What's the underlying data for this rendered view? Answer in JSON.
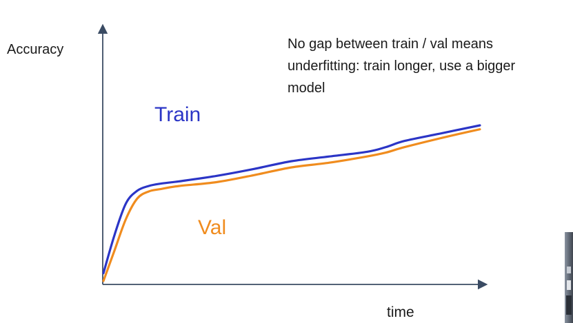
{
  "chart_data": {
    "type": "line",
    "ylabel": "Accuracy",
    "xlabel": "time",
    "annotation": "No gap between train / val means underfitting: train longer, use a bigger model",
    "annotation_lines": [
      "No gap between train / val means",
      "underfitting: train longer, use a bigger",
      "model"
    ],
    "xlim": [
      0,
      100
    ],
    "ylim": [
      0,
      100
    ],
    "series": [
      {
        "name": "Train",
        "color": "#2b35c6",
        "x": [
          0,
          3,
          6,
          9,
          12,
          15,
          20,
          30,
          40,
          50,
          60,
          70,
          75,
          80,
          90,
          100
        ],
        "y": [
          5,
          30,
          50,
          58,
          61,
          62.5,
          64,
          67.5,
          72,
          77,
          80,
          83,
          86,
          90,
          95,
          100
        ]
      },
      {
        "name": "Val",
        "color": "#f08c1e",
        "x": [
          0,
          3,
          6,
          9,
          12,
          15,
          20,
          30,
          40,
          50,
          60,
          70,
          75,
          80,
          90,
          100
        ],
        "y": [
          0,
          20,
          40,
          53,
          57.5,
          59,
          61,
          63.5,
          68,
          73,
          76,
          80,
          82.5,
          86,
          92,
          97.5
        ]
      }
    ],
    "legend": "inline"
  }
}
